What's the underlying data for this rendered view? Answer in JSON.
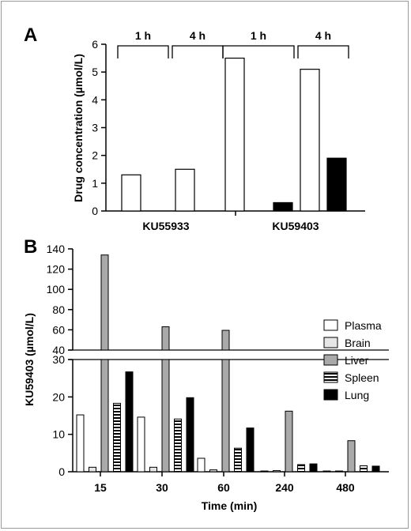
{
  "chart_data": [
    {
      "panel": "A",
      "type": "bar",
      "ylabel": "Drug concentration (µmol/L)",
      "ylim": [
        0,
        6
      ],
      "yticks": [
        0,
        1,
        2,
        3,
        4,
        5,
        6
      ],
      "groups": [
        "KU55933",
        "KU59403"
      ],
      "time_labels": [
        "1 h",
        "4 h",
        "1 h",
        "4 h"
      ],
      "bars": [
        {
          "group": "KU55933",
          "time": "1 h",
          "fill": "open",
          "value": 1.3
        },
        {
          "group": "KU55933",
          "time": "1 h",
          "fill": "filled",
          "value": 0
        },
        {
          "group": "KU55933",
          "time": "4 h",
          "fill": "open",
          "value": 1.5
        },
        {
          "group": "KU55933",
          "time": "4 h",
          "fill": "filled",
          "value": 0
        },
        {
          "group": "KU59403",
          "time": "1 h",
          "fill": "open",
          "value": 5.5
        },
        {
          "group": "KU59403",
          "time": "1 h",
          "fill": "filled",
          "value": 0.3
        },
        {
          "group": "KU59403",
          "time": "4 h",
          "fill": "open",
          "value": 5.1
        },
        {
          "group": "KU59403",
          "time": "4 h",
          "fill": "filled",
          "value": 1.9
        }
      ]
    },
    {
      "panel": "B",
      "type": "bar",
      "ylabel": "KU59403 (µmol/L)",
      "xlabel": "Time (min)",
      "categories": [
        "15",
        "30",
        "60",
        "240",
        "480"
      ],
      "y_lower_ticks": [
        0,
        10,
        20,
        30
      ],
      "y_upper_ticks": [
        40,
        60,
        80,
        100,
        120,
        140
      ],
      "y_break": [
        30,
        40
      ],
      "series": [
        {
          "name": "Plasma",
          "style": "white",
          "values": [
            15.2,
            14.6,
            3.6,
            0.2,
            0.2
          ]
        },
        {
          "name": "Brain",
          "style": "lightgray",
          "values": [
            1.2,
            1.2,
            0.5,
            0.3,
            0.2
          ]
        },
        {
          "name": "Liver",
          "style": "gray",
          "values": [
            134,
            63,
            59.5,
            16.2,
            8.3
          ]
        },
        {
          "name": "Spleen",
          "style": "striped",
          "values": [
            18.3,
            14.1,
            6.3,
            1.9,
            1.6
          ]
        },
        {
          "name": "Lung",
          "style": "black",
          "values": [
            26.7,
            19.8,
            11.7,
            2.1,
            1.5
          ]
        }
      ]
    }
  ]
}
